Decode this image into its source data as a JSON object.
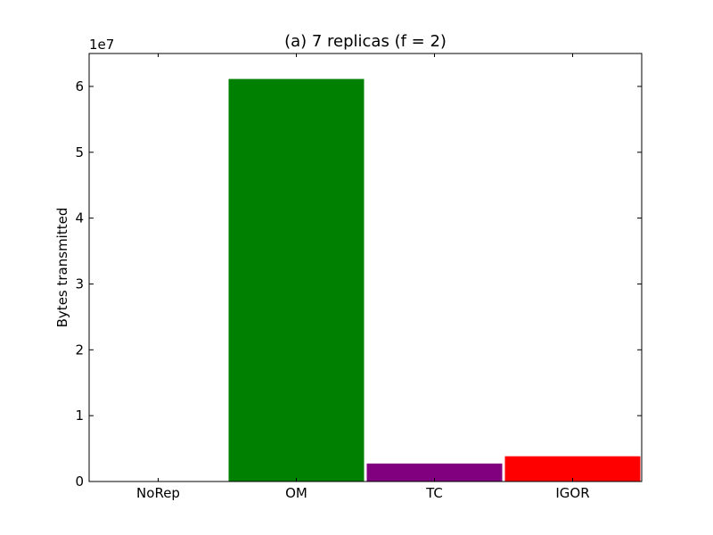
{
  "chart_data": {
    "type": "bar",
    "title": "(a) 7 replicas (f = 2)",
    "xlabel": "",
    "ylabel": "Bytes transmitted",
    "offset_label": "1e7",
    "categories": [
      "NoRep",
      "OM",
      "TC",
      "IGOR"
    ],
    "values": [
      0,
      61200000,
      2800000,
      3900000
    ],
    "colors": [
      "#0000ff",
      "#008000",
      "#800080",
      "#ff0000"
    ],
    "ylim": [
      0,
      65000000
    ],
    "yticks": [
      0,
      10000000,
      20000000,
      30000000,
      40000000,
      50000000,
      60000000
    ],
    "ytick_labels": [
      "0",
      "1",
      "2",
      "3",
      "4",
      "5",
      "6"
    ],
    "grid": false,
    "legend": "none"
  }
}
